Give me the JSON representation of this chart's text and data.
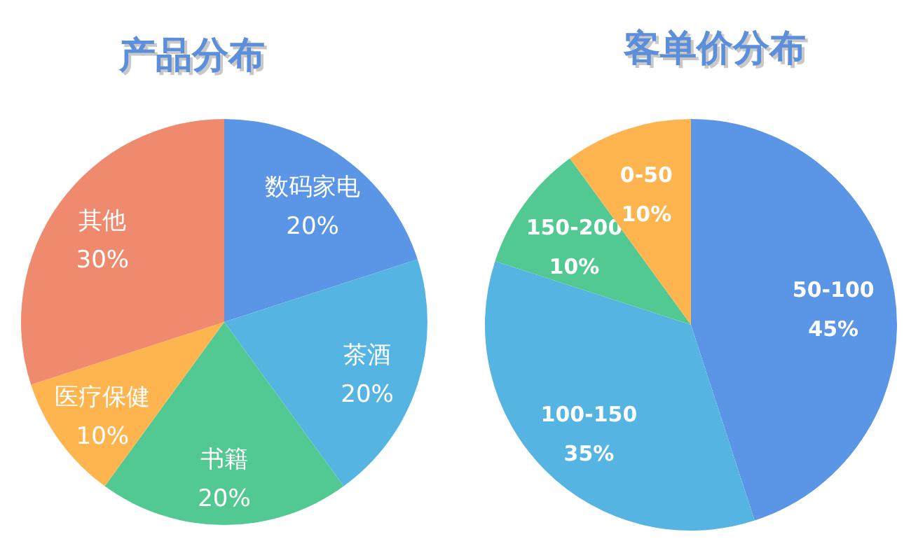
{
  "chart_data": [
    {
      "type": "pie",
      "title": "产品分布",
      "categories": [
        "数码家电",
        "茶酒",
        "书籍",
        "医疗保健",
        "其他"
      ],
      "values": [
        20,
        20,
        20,
        10,
        30
      ],
      "value_labels": [
        "20%",
        "20%",
        "20%",
        "10%",
        "30%"
      ],
      "colors": [
        "#5b95e5",
        "#56b4e3",
        "#52c993",
        "#ffb54f",
        "#ef8a6f"
      ]
    },
    {
      "type": "pie",
      "title": "客单价分布",
      "categories": [
        "50-100",
        "100-150",
        "150-200",
        "0-50"
      ],
      "values": [
        45,
        35,
        10,
        10
      ],
      "value_labels": [
        "45%",
        "35%",
        "10%",
        "10%"
      ],
      "colors": [
        "#5b95e5",
        "#56b4e3",
        "#52c993",
        "#ffb54f"
      ]
    }
  ]
}
